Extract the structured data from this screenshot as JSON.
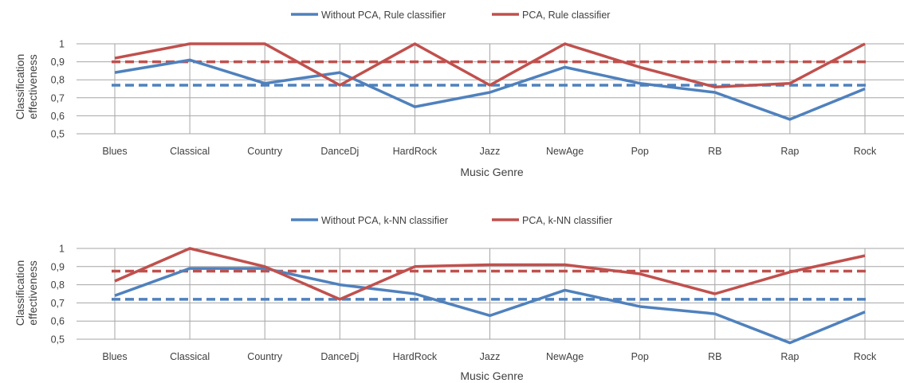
{
  "colors": {
    "blue": "#4F81BD",
    "red": "#C0504D",
    "grid": "#A6A6A6",
    "text": "#404040"
  },
  "chart_data": [
    {
      "type": "line",
      "title": "",
      "xlabel": "Music Genre",
      "ylabel_lines": [
        "Classification",
        "effectiveness"
      ],
      "ylim": [
        0.5,
        1.0
      ],
      "yticks": [
        "0,5",
        "0,6",
        "0,7",
        "0,8",
        "0,9",
        "1"
      ],
      "legend_position": "top",
      "categories": [
        "Blues",
        "Classical",
        "Country",
        "DanceDj",
        "HardRock",
        "Jazz",
        "NewAge",
        "Pop",
        "RB",
        "Rap",
        "Rock"
      ],
      "series": [
        {
          "name": "Without PCA, Rule classifier",
          "color": "#4F81BD",
          "values": [
            0.84,
            0.91,
            0.78,
            0.84,
            0.65,
            0.73,
            0.87,
            0.78,
            0.73,
            0.58,
            0.75
          ],
          "average": 0.77
        },
        {
          "name": "PCA, Rule classifier",
          "color": "#C0504D",
          "values": [
            0.92,
            1.0,
            1.0,
            0.77,
            1.0,
            0.77,
            1.0,
            0.87,
            0.76,
            0.78,
            1.0
          ],
          "average": 0.9
        }
      ]
    },
    {
      "type": "line",
      "title": "",
      "xlabel": "Music Genre",
      "ylabel_lines": [
        "Classification",
        "effectiveness"
      ],
      "ylim": [
        0.5,
        1.0
      ],
      "yticks": [
        "0,5",
        "0,6",
        "0,7",
        "0,8",
        "0,9",
        "1"
      ],
      "legend_position": "top",
      "categories": [
        "Blues",
        "Classical",
        "Country",
        "DanceDj",
        "HardRock",
        "Jazz",
        "NewAge",
        "Pop",
        "RB",
        "Rap",
        "Rock"
      ],
      "series": [
        {
          "name": "Without PCA, k-NN classifier",
          "color": "#4F81BD",
          "values": [
            0.74,
            0.89,
            0.89,
            0.8,
            0.75,
            0.63,
            0.77,
            0.68,
            0.64,
            0.48,
            0.65
          ],
          "average": 0.72
        },
        {
          "name": "PCA, k-NN classifier",
          "color": "#C0504D",
          "values": [
            0.82,
            1.0,
            0.9,
            0.72,
            0.9,
            0.91,
            0.91,
            0.86,
            0.75,
            0.87,
            0.96
          ],
          "average": 0.875
        }
      ]
    }
  ]
}
